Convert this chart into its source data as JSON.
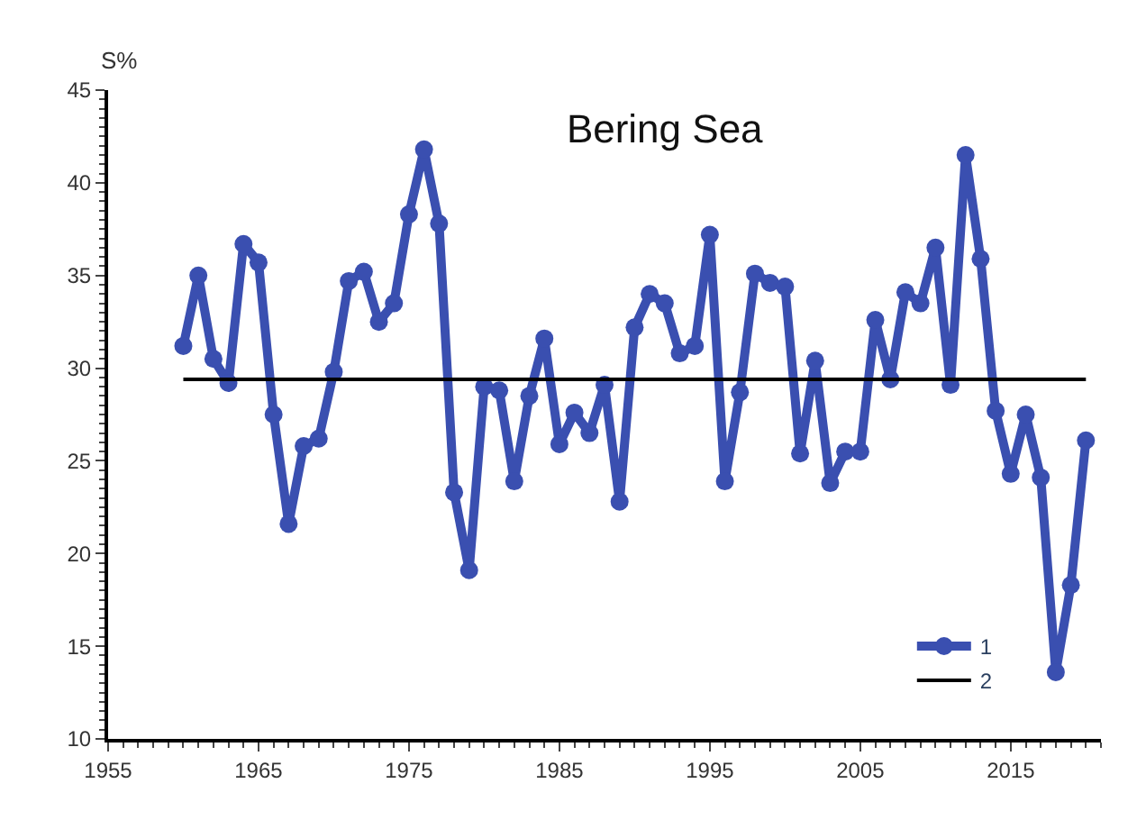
{
  "chart_data": {
    "type": "line",
    "title": "Bering Sea",
    "ylabel": "S%",
    "xlim": [
      1955,
      2021
    ],
    "xticks": [
      1955,
      1965,
      1975,
      1985,
      1995,
      2005,
      2015
    ],
    "ylim": [
      10,
      45
    ],
    "yticks": [
      10,
      15,
      20,
      25,
      30,
      35,
      40,
      45
    ],
    "legend": "bottom right",
    "series": [
      {
        "name": "1",
        "color": "#3a4fb0",
        "marker": "circle",
        "x": [
          1960,
          1961,
          1962,
          1963,
          1964,
          1965,
          1966,
          1967,
          1968,
          1969,
          1970,
          1971,
          1972,
          1973,
          1974,
          1975,
          1976,
          1977,
          1978,
          1979,
          1980,
          1981,
          1982,
          1983,
          1984,
          1985,
          1986,
          1987,
          1988,
          1989,
          1990,
          1991,
          1992,
          1993,
          1994,
          1995,
          1996,
          1997,
          1998,
          1999,
          2000,
          2001,
          2002,
          2003,
          2004,
          2005,
          2006,
          2007,
          2008,
          2009,
          2010,
          2011,
          2012,
          2013,
          2014,
          2015,
          2016,
          2017,
          2018,
          2019,
          2020
        ],
        "values": [
          31.2,
          35,
          30.5,
          29.2,
          36.7,
          35.7,
          27.5,
          21.6,
          25.8,
          26.2,
          29.8,
          34.7,
          35.2,
          32.5,
          33.5,
          38.3,
          41.8,
          37.8,
          23.3,
          19.1,
          29,
          28.8,
          23.9,
          28.5,
          31.6,
          25.9,
          27.6,
          26.5,
          29.1,
          22.8,
          32.2,
          34,
          33.5,
          30.8,
          31.2,
          37.2,
          23.9,
          28.7,
          35.1,
          34.6,
          34.4,
          25.4,
          30.4,
          23.8,
          25.5,
          25.5,
          32.6,
          29.4,
          34.1,
          33.5,
          36.5,
          29.1,
          41.5,
          35.9,
          27.7,
          24.3,
          27.5,
          24.1,
          13.6,
          18.3,
          26.1
        ]
      },
      {
        "name": "2",
        "color": "#000000",
        "marker": "none",
        "x": [
          1960,
          2020
        ],
        "values": [
          29.4,
          29.4
        ]
      }
    ]
  }
}
